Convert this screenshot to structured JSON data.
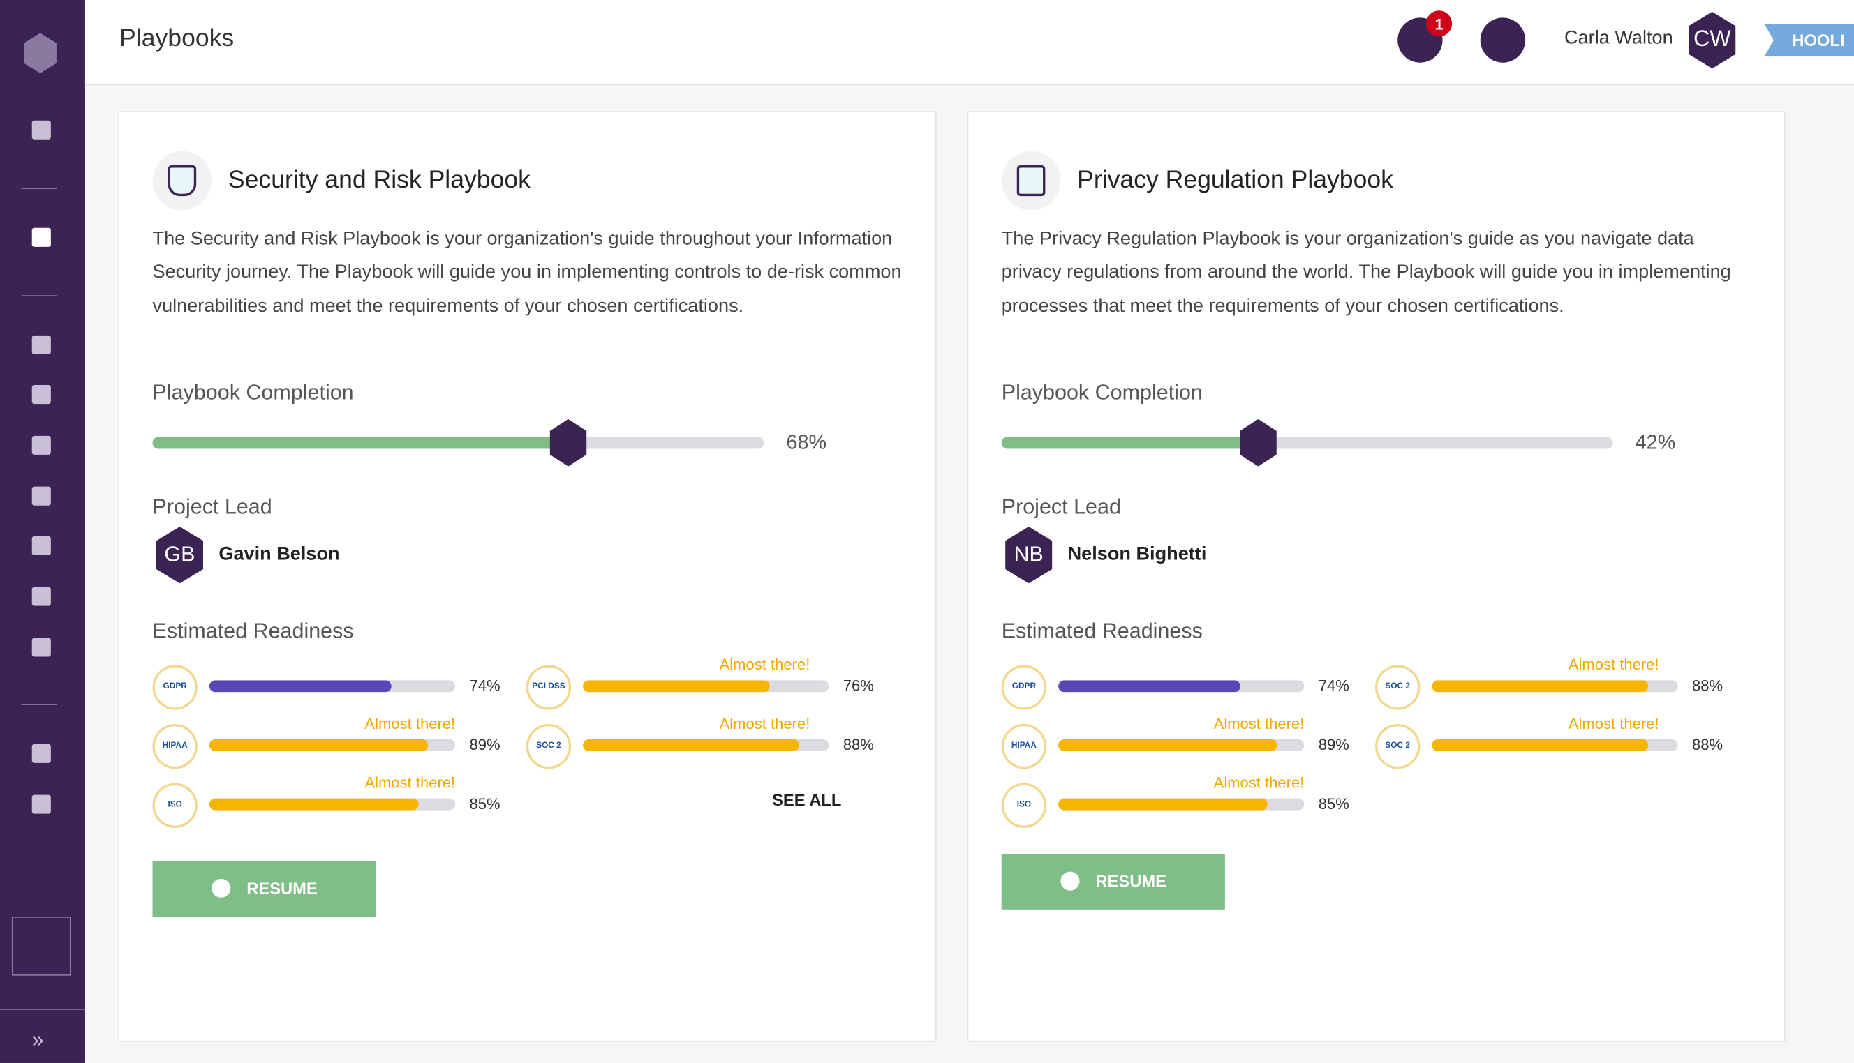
{
  "header": {
    "title": "Playbooks",
    "notifications": 1,
    "user": "Carla Walton",
    "initials": "CW",
    "tenant": "HOOLI"
  },
  "playbooks": [
    {
      "title": "Security and Risk Playbook",
      "description": "The Security and Risk Playbook is your organization's guide throughout your Information Security journey. The Playbook will guide you in implementing controls to de-risk common vulnerabilities and meet the requirements of your chosen certifications.",
      "completion_heading": "Playbook Completion",
      "completion": {
        "value": 68,
        "label": "68%"
      },
      "lead_heading": "Project Lead",
      "lead": {
        "initials": "GB",
        "name": "Gavin Belson"
      },
      "readiness_heading": "Estimated Readiness",
      "readiness": [
        {
          "badge": "GDPR",
          "value": 74,
          "label": "74%",
          "color": "#5b46b8"
        },
        {
          "badge": "HIPAA",
          "value": 89,
          "label": "89%",
          "note": "Almost there!",
          "color": "#f7b500"
        },
        {
          "badge": "ISO",
          "value": 85,
          "label": "85%",
          "note": "Almost there!",
          "color": "#f7b500"
        },
        {
          "badge": "PCI DSS",
          "value": 76,
          "label": "76%",
          "note": "Almost there!",
          "color": "#f7b500"
        },
        {
          "badge": "SOC 2",
          "value": 88,
          "label": "88%",
          "note": "Almost there!",
          "color": "#f7b500"
        }
      ],
      "see_all": "SEE ALL",
      "action": "RESUME"
    },
    {
      "title": "Privacy Regulation Playbook",
      "description": "The Privacy Regulation Playbook is your organization's guide as you navigate data privacy regulations from around the world. The Playbook will guide you in implementing processes that meet the requirements of your chosen certifications.",
      "completion_heading": "Playbook Completion",
      "completion": {
        "value": 42,
        "label": "42%"
      },
      "lead_heading": "Project Lead",
      "lead": {
        "initials": "NB",
        "name": "Nelson Bighetti"
      },
      "readiness_heading": "Estimated Readiness",
      "readiness": [
        {
          "badge": "GDPR",
          "value": 74,
          "label": "74%",
          "color": "#5b46b8"
        },
        {
          "badge": "HIPAA",
          "value": 89,
          "label": "89%",
          "note": "Almost there!",
          "color": "#f7b500"
        },
        {
          "badge": "ISO",
          "value": 85,
          "label": "85%",
          "note": "Almost there!",
          "color": "#f7b500"
        },
        {
          "badge": "SOC 2",
          "value": 88,
          "label": "88%",
          "note": "Almost there!",
          "color": "#f7b500"
        },
        {
          "badge": "SOC 2",
          "value": 88,
          "label": "88%",
          "note": "Almost there!",
          "color": "#f7b500"
        }
      ],
      "action": "RESUME"
    }
  ]
}
